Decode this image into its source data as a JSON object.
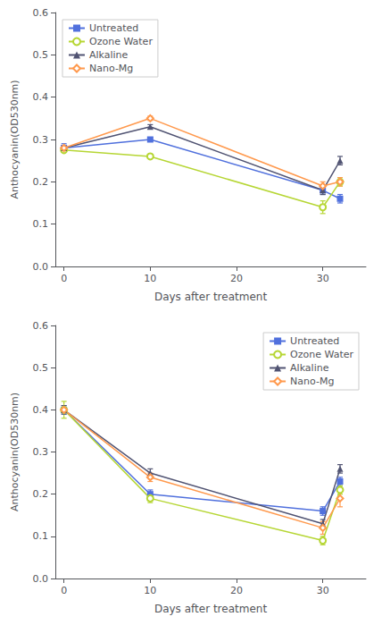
{
  "chart_data": [
    {
      "type": "line",
      "xlabel": "Days after treatment",
      "ylabel": "Anthocyanin(OD530nm)",
      "xlim": [
        -1,
        35
      ],
      "ylim": [
        0,
        0.6
      ],
      "xticks": [
        0,
        10,
        20,
        30
      ],
      "yticks": [
        {
          "value": 0,
          "label": "0.0"
        },
        0.1,
        0.2,
        0.3,
        0.4,
        0.5,
        0.6
      ],
      "grid": false,
      "legend": "upper left",
      "series": [
        {
          "name": "Untreated",
          "marker": "square",
          "x": [
            0,
            10,
            30,
            32
          ],
          "values": [
            0.28,
            0.3,
            0.18,
            0.16
          ],
          "yerr": [
            0.01,
            0.005,
            0.01,
            0.01
          ]
        },
        {
          "name": "Ozone Water",
          "marker": "circle-open",
          "x": [
            0,
            10,
            30,
            32
          ],
          "values": [
            0.275,
            0.26,
            0.14,
            0.2
          ],
          "yerr": [
            0.005,
            0.005,
            0.015,
            0.01
          ]
        },
        {
          "name": "Alkaline",
          "marker": "triangle",
          "x": [
            0,
            10,
            30,
            32
          ],
          "values": [
            0.28,
            0.33,
            0.18,
            0.25
          ],
          "yerr": [
            0.005,
            0.005,
            0.01,
            0.01
          ]
        },
        {
          "name": "Nano-Mg",
          "marker": "diamond-open",
          "x": [
            0,
            10,
            30,
            32
          ],
          "values": [
            0.28,
            0.35,
            0.19,
            0.2
          ],
          "yerr": [
            0.005,
            0.005,
            0.01,
            0.01
          ]
        }
      ]
    },
    {
      "type": "line",
      "xlabel": "Days after treatment",
      "ylabel": "Anthocyanin(OD530nm)",
      "xlim": [
        -1,
        35
      ],
      "ylim": [
        0,
        0.6
      ],
      "xticks": [
        0,
        10,
        20,
        30
      ],
      "yticks": [
        {
          "value": 0,
          "label": "0.0"
        },
        0.1,
        0.2,
        0.3,
        0.4,
        0.5,
        0.6
      ],
      "grid": false,
      "legend": "upper right",
      "series": [
        {
          "name": "Untreated",
          "marker": "square",
          "x": [
            0,
            10,
            30,
            32
          ],
          "values": [
            0.4,
            0.2,
            0.16,
            0.23
          ],
          "yerr": [
            0.01,
            0.01,
            0.01,
            0.01
          ]
        },
        {
          "name": "Ozone Water",
          "marker": "circle-open",
          "x": [
            0,
            10,
            30,
            32
          ],
          "values": [
            0.4,
            0.19,
            0.09,
            0.21
          ],
          "yerr": [
            0.02,
            0.01,
            0.01,
            0.01
          ]
        },
        {
          "name": "Alkaline",
          "marker": "triangle",
          "x": [
            0,
            10,
            30,
            32
          ],
          "values": [
            0.4,
            0.25,
            0.13,
            0.26
          ],
          "yerr": [
            0.01,
            0.01,
            0.01,
            0.01
          ]
        },
        {
          "name": "Nano-Mg",
          "marker": "diamond-open",
          "x": [
            0,
            10,
            30,
            32
          ],
          "values": [
            0.4,
            0.24,
            0.12,
            0.19
          ],
          "yerr": [
            0.005,
            0.01,
            0.015,
            0.02
          ]
        }
      ]
    }
  ]
}
